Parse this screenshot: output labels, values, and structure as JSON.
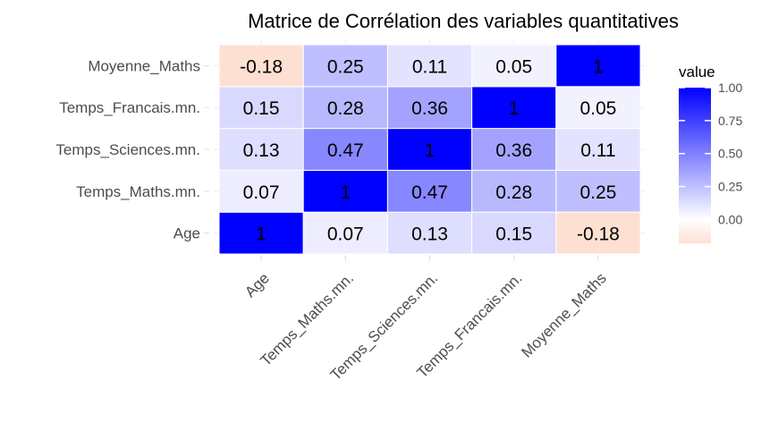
{
  "chart_data": {
    "type": "heatmap",
    "title": "Matrice de Corrélation des variables quantitatives",
    "xlabel": "",
    "ylabel": "",
    "x_categories": [
      "Age",
      "Temps_Maths.mn.",
      "Temps_Sciences.mn.",
      "Temps_Francais.mn.",
      "Moyenne_Maths"
    ],
    "y_categories": [
      "Age",
      "Temps_Maths.mn.",
      "Temps_Sciences.mn.",
      "Temps_Francais.mn.",
      "Moyenne_Maths"
    ],
    "values": [
      [
        1,
        0.07,
        0.13,
        0.15,
        -0.18
      ],
      [
        0.07,
        1,
        0.47,
        0.28,
        0.25
      ],
      [
        0.13,
        0.47,
        1,
        0.36,
        0.11
      ],
      [
        0.15,
        0.28,
        0.36,
        1,
        0.05
      ],
      [
        -0.18,
        0.25,
        0.11,
        0.05,
        1
      ]
    ],
    "value_labels": [
      [
        "1",
        "0.07",
        "0.13",
        "0.15",
        "-0.18"
      ],
      [
        "0.07",
        "1",
        "0.47",
        "0.28",
        "0.25"
      ],
      [
        "0.13",
        "0.47",
        "1",
        "0.36",
        "0.11"
      ],
      [
        "0.15",
        "0.28",
        "0.36",
        "1",
        "0.05"
      ],
      [
        "-0.18",
        "0.25",
        "0.11",
        "0.05",
        "1"
      ]
    ],
    "legend": {
      "title": "value",
      "placement": "right",
      "ticks": [
        1.0,
        0.75,
        0.5,
        0.25,
        0.0
      ],
      "tick_labels": [
        "1.00",
        "0.75",
        "0.50",
        "0.25",
        "0.00"
      ],
      "range": [
        -0.18,
        1
      ]
    },
    "colors": {
      "low": "#fde0d2",
      "mid": "#ffffff",
      "high": "#0000ff"
    },
    "grid": true
  }
}
